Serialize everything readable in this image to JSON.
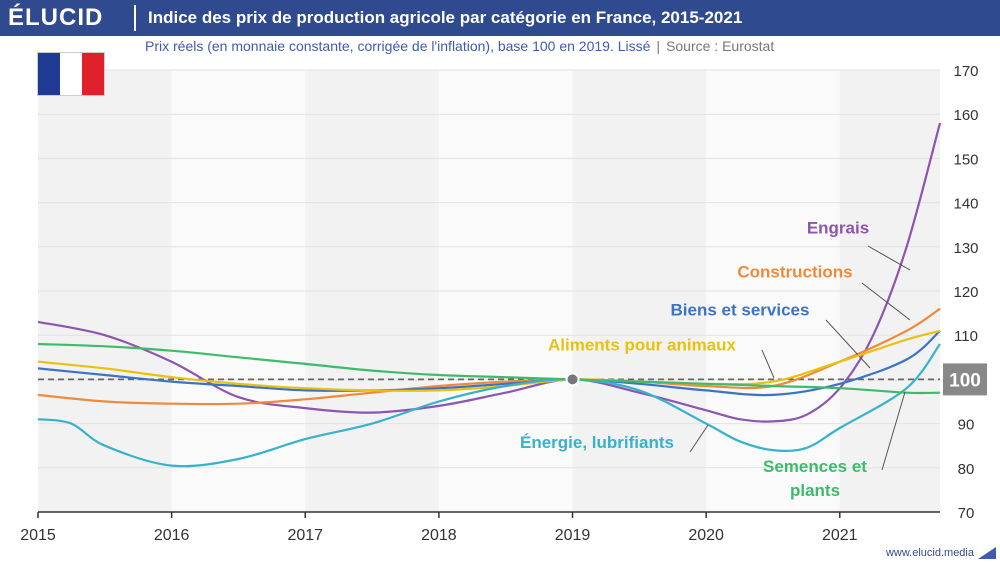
{
  "header": {
    "logo": "ÉLUCID",
    "title": "Indice des prix de production agricole par catégorie en France, 2015-2021"
  },
  "subtitle": {
    "text": "Prix réels (en monnaie constante, corrigée de l'inflation), base 100 en 2019. Lissé",
    "separator": "|",
    "source": "Source : Eurostat"
  },
  "flag": {
    "colors": [
      "#1f3a93",
      "#ffffff",
      "#e0202b"
    ]
  },
  "footer": {
    "url": "www.elucid.media"
  },
  "chart_data": {
    "type": "line",
    "title": "Indice des prix de production agricole par catégorie en France, 2015-2021",
    "xlabel": "",
    "ylabel": "",
    "xlim": [
      2015,
      2021.75
    ],
    "ylim": [
      70,
      170
    ],
    "x_ticks": [
      "2015",
      "2016",
      "2017",
      "2018",
      "2019",
      "2020",
      "2021"
    ],
    "y_ticks": [
      70,
      80,
      90,
      100,
      110,
      120,
      130,
      140,
      150,
      160,
      170
    ],
    "y_axis_position": "right",
    "reference_line": {
      "value": 100,
      "label": "100"
    },
    "reference_point": {
      "x": 2019,
      "y": 100
    },
    "grid": "alternating-year-bands",
    "series": [
      {
        "name": "Engrais",
        "color": "#8b55b0",
        "points": [
          [
            2015,
            113
          ],
          [
            2015.5,
            110
          ],
          [
            2016,
            104
          ],
          [
            2016.5,
            96
          ],
          [
            2017,
            93.5
          ],
          [
            2017.5,
            92.5
          ],
          [
            2018,
            94
          ],
          [
            2018.5,
            97
          ],
          [
            2019,
            100
          ],
          [
            2019.5,
            97
          ],
          [
            2020,
            93
          ],
          [
            2020.25,
            91
          ],
          [
            2020.5,
            90.5
          ],
          [
            2020.75,
            92
          ],
          [
            2021,
            98
          ],
          [
            2021.25,
            110
          ],
          [
            2021.5,
            130
          ],
          [
            2021.75,
            158
          ]
        ],
        "label_value": 133
      },
      {
        "name": "Constructions",
        "color": "#ef8a3a",
        "points": [
          [
            2015,
            96.5
          ],
          [
            2015.5,
            95
          ],
          [
            2016,
            94.5
          ],
          [
            2016.5,
            94.5
          ],
          [
            2017,
            95.5
          ],
          [
            2017.5,
            97
          ],
          [
            2018,
            98.5
          ],
          [
            2018.5,
            99.5
          ],
          [
            2019,
            100
          ],
          [
            2019.5,
            99.5
          ],
          [
            2020,
            98.5
          ],
          [
            2020.5,
            98.5
          ],
          [
            2021,
            104
          ],
          [
            2021.5,
            111
          ],
          [
            2021.75,
            116
          ]
        ],
        "label_value": 123
      },
      {
        "name": "Biens et services",
        "color": "#3b74c6",
        "points": [
          [
            2015,
            102.5
          ],
          [
            2015.5,
            101
          ],
          [
            2016,
            99.5
          ],
          [
            2016.5,
            98.5
          ],
          [
            2017,
            97.5
          ],
          [
            2017.5,
            97.5
          ],
          [
            2018,
            98
          ],
          [
            2018.5,
            99
          ],
          [
            2019,
            100
          ],
          [
            2019.5,
            99
          ],
          [
            2020,
            97.5
          ],
          [
            2020.5,
            96.5
          ],
          [
            2021,
            99
          ],
          [
            2021.5,
            104.5
          ],
          [
            2021.75,
            111
          ]
        ],
        "label_value": 114.5
      },
      {
        "name": "Aliments pour animaux",
        "color": "#e8c20e",
        "points": [
          [
            2015,
            104
          ],
          [
            2015.5,
            102.5
          ],
          [
            2016,
            100.5
          ],
          [
            2016.5,
            99
          ],
          [
            2017,
            98
          ],
          [
            2017.5,
            97.5
          ],
          [
            2018,
            97.5
          ],
          [
            2018.5,
            98.5
          ],
          [
            2019,
            100
          ],
          [
            2019.5,
            99.5
          ],
          [
            2020,
            99
          ],
          [
            2020.5,
            99.5
          ],
          [
            2021,
            104
          ],
          [
            2021.5,
            109
          ],
          [
            2021.75,
            111
          ]
        ],
        "label_value": 106.5
      },
      {
        "name": "Énergie, lubrifiants",
        "color": "#36b2cc",
        "points": [
          [
            2015,
            91
          ],
          [
            2015.25,
            90
          ],
          [
            2015.5,
            85
          ],
          [
            2016,
            80.5
          ],
          [
            2016.5,
            82
          ],
          [
            2017,
            86.5
          ],
          [
            2017.5,
            90
          ],
          [
            2018,
            95
          ],
          [
            2018.5,
            98.5
          ],
          [
            2019,
            100
          ],
          [
            2019.5,
            97.5
          ],
          [
            2020,
            90
          ],
          [
            2020.25,
            86
          ],
          [
            2020.5,
            84
          ],
          [
            2020.75,
            84.5
          ],
          [
            2021,
            89
          ],
          [
            2021.5,
            98
          ],
          [
            2021.75,
            108
          ]
        ],
        "label_value": 84.5
      },
      {
        "name": "Semences et plants",
        "color": "#3dbb6a",
        "points": [
          [
            2015,
            108
          ],
          [
            2015.5,
            107.5
          ],
          [
            2016,
            106.5
          ],
          [
            2016.5,
            105
          ],
          [
            2017,
            103.5
          ],
          [
            2017.5,
            102
          ],
          [
            2018,
            101
          ],
          [
            2018.5,
            100.5
          ],
          [
            2019,
            100
          ],
          [
            2019.5,
            99.5
          ],
          [
            2020,
            99
          ],
          [
            2020.5,
            98.5
          ],
          [
            2021,
            98
          ],
          [
            2021.5,
            97
          ],
          [
            2021.75,
            97
          ]
        ],
        "label_value": 79
      }
    ]
  }
}
